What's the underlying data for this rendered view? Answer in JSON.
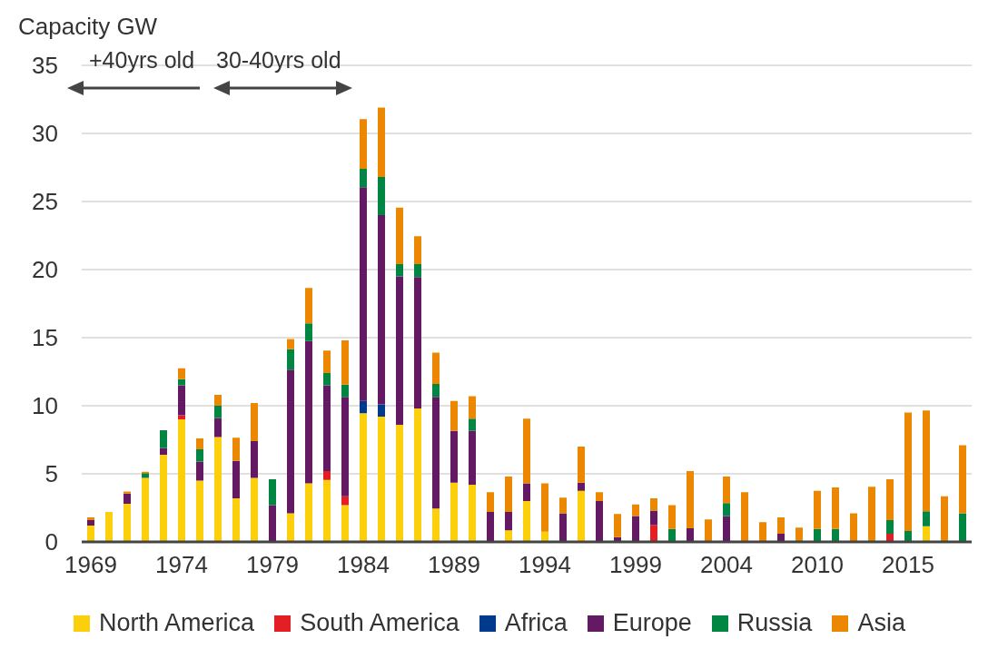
{
  "chart_data": {
    "type": "bar",
    "stacked": true,
    "ylabel": "Capacity GW",
    "categories": [
      "1969",
      null,
      null,
      null,
      null,
      "1974",
      null,
      null,
      null,
      null,
      "1979",
      null,
      null,
      null,
      null,
      "1984",
      null,
      null,
      null,
      null,
      "1989",
      null,
      null,
      null,
      null,
      "1994",
      null,
      null,
      null,
      null,
      "1999",
      null,
      null,
      null,
      null,
      "2004",
      null,
      null,
      null,
      null,
      "2010",
      null,
      null,
      null,
      null,
      "2015",
      null,
      null,
      null
    ],
    "series": [
      {
        "name": "North America",
        "color": "#fccf0c",
        "values": [
          1.2,
          2.2,
          2.8,
          4.7,
          6.4,
          9.0,
          4.5,
          7.7,
          3.2,
          4.7,
          null,
          2.1,
          4.3,
          4.55,
          2.7,
          9.45,
          9.2,
          8.6,
          9.8,
          2.45,
          4.35,
          4.2,
          null,
          0.85,
          3.0,
          0.75,
          null,
          3.75,
          null,
          null,
          null,
          null,
          null,
          null,
          null,
          null,
          null,
          null,
          null,
          null,
          null,
          null,
          null,
          null,
          null,
          null,
          1.15,
          null,
          null
        ]
      },
      {
        "name": "South America",
        "color": "#e31e24",
        "values": [
          null,
          null,
          null,
          null,
          null,
          0.3,
          null,
          null,
          null,
          null,
          null,
          null,
          null,
          0.65,
          0.65,
          null,
          null,
          null,
          null,
          null,
          null,
          null,
          null,
          null,
          null,
          null,
          null,
          null,
          null,
          null,
          null,
          1.25,
          null,
          null,
          null,
          null,
          null,
          null,
          null,
          null,
          null,
          null,
          null,
          null,
          0.6,
          null,
          null,
          null,
          null
        ]
      },
      {
        "name": "Africa",
        "color": "#003a8c",
        "values": [
          null,
          null,
          null,
          null,
          null,
          null,
          null,
          null,
          null,
          null,
          null,
          null,
          null,
          null,
          null,
          0.9,
          0.9,
          null,
          null,
          null,
          null,
          null,
          null,
          null,
          null,
          null,
          null,
          null,
          null,
          null,
          null,
          null,
          null,
          null,
          null,
          null,
          null,
          null,
          null,
          null,
          null,
          null,
          null,
          null,
          null,
          null,
          null,
          null,
          null
        ]
      },
      {
        "name": "Europe",
        "color": "#641a62",
        "values": [
          0.4,
          null,
          0.75,
          null,
          0.5,
          2.2,
          1.4,
          1.4,
          2.75,
          2.7,
          2.7,
          10.55,
          10.45,
          6.3,
          7.3,
          15.7,
          13.9,
          10.9,
          9.65,
          8.2,
          3.8,
          3.95,
          2.2,
          1.35,
          1.3,
          null,
          2.1,
          0.6,
          3.0,
          0.35,
          1.9,
          1.05,
          null,
          1.0,
          null,
          1.9,
          null,
          null,
          0.6,
          null,
          null,
          null,
          null,
          null,
          null,
          null,
          null,
          null,
          null
        ]
      },
      {
        "name": "Russia",
        "color": "#008542",
        "values": [
          null,
          null,
          null,
          0.35,
          1.3,
          0.45,
          0.9,
          0.9,
          null,
          null,
          1.9,
          1.5,
          1.3,
          0.9,
          0.9,
          1.35,
          2.8,
          0.9,
          0.95,
          0.95,
          null,
          0.9,
          null,
          null,
          null,
          null,
          null,
          null,
          null,
          null,
          null,
          null,
          0.95,
          null,
          null,
          0.95,
          null,
          null,
          null,
          null,
          0.95,
          0.95,
          null,
          null,
          1.0,
          0.8,
          1.1,
          null,
          2.1
        ]
      },
      {
        "name": "Asia",
        "color": "#ec8702",
        "values": [
          0.2,
          null,
          0.15,
          0.1,
          null,
          0.8,
          0.8,
          0.8,
          1.7,
          2.8,
          null,
          0.75,
          2.6,
          1.65,
          3.25,
          3.65,
          5.1,
          4.15,
          2.05,
          2.3,
          2.2,
          1.65,
          1.45,
          2.6,
          4.75,
          3.55,
          1.15,
          2.65,
          0.65,
          1.7,
          0.85,
          0.9,
          1.75,
          4.2,
          1.65,
          1.95,
          3.65,
          1.45,
          1.2,
          1.05,
          2.8,
          3.05,
          2.1,
          4.05,
          3.0,
          8.7,
          7.4,
          3.35,
          5.0
        ]
      }
    ],
    "ylim": [
      0,
      35
    ],
    "yticks": [
      0,
      5,
      10,
      15,
      20,
      25,
      30,
      35
    ],
    "grid": "y",
    "legend": "bottom",
    "annotations": [
      "+40yrs old",
      "30-40yrs old"
    ]
  }
}
